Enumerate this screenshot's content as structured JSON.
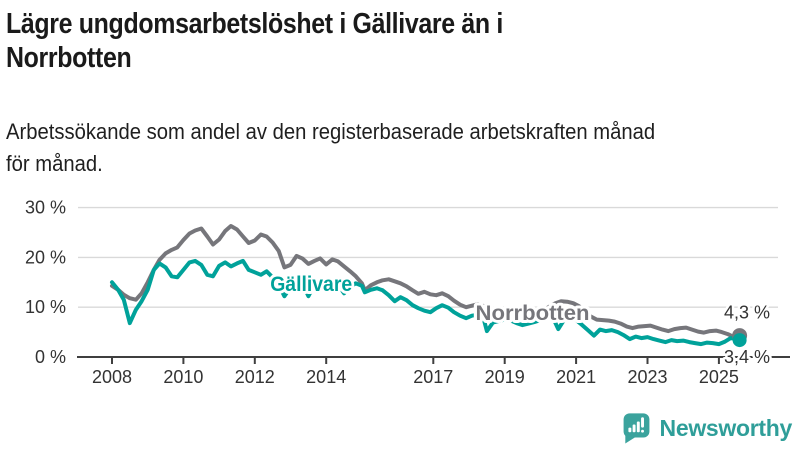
{
  "header": {
    "title_lines": [
      "Lägre ungdomsarbetslöshet i Gällivare än i",
      "Norrbotten"
    ],
    "subtitle_lines": [
      "Arbetssökande som andel av den registerbaserade arbetskraften månad",
      "för månad."
    ]
  },
  "footer": {
    "brand": "Newsworthy",
    "logo_icon": "bar-chart-exclamation-bubble-icon"
  },
  "colors": {
    "gallivare": "#00a29a",
    "norrbotten": "#76767b",
    "grid": "#d9d9d9",
    "axis": "#3f3f3f",
    "tick_text": "#333333",
    "brand_teal": "#2f9e99"
  },
  "chart_data": {
    "type": "line",
    "title": "Lägre ungdomsarbetslöshet i Gällivare än i Norrbotten",
    "subtitle": "Arbetssökande som andel av den registerbaserade arbetskraften månad för månad.",
    "xlabel": "",
    "ylabel": "",
    "grid": "horizontal",
    "legend_position": "inline-labels",
    "xlim": [
      2007.6,
      2026.0
    ],
    "ylim": [
      0,
      30
    ],
    "x_ticks": [
      2008,
      2010,
      2012,
      2014,
      2017,
      2019,
      2021,
      2023,
      2025
    ],
    "y_ticks": [
      0,
      10,
      20,
      30
    ],
    "y_tick_labels": [
      "0 %",
      "10 %",
      "20 %",
      "30 %"
    ],
    "annotations": [
      {
        "label": "Gällivare",
        "x": 2013.58,
        "y": 14.7,
        "color": "#00a29a",
        "width": 82
      },
      {
        "label": "Norrbotten",
        "x": 2019.78,
        "y": 8.8,
        "color": "#76767b",
        "width": 114
      }
    ],
    "series": [
      {
        "name": "Norrbotten",
        "color": "#76767b",
        "end_label": "4,3 %",
        "end_value": 4.3,
        "points": [
          [
            2008.0,
            14.3
          ],
          [
            2008.17,
            13.5
          ],
          [
            2008.33,
            12.5
          ],
          [
            2008.5,
            11.8
          ],
          [
            2008.67,
            11.5
          ],
          [
            2008.83,
            12.8
          ],
          [
            2009.0,
            15.0
          ],
          [
            2009.17,
            17.5
          ],
          [
            2009.33,
            19.5
          ],
          [
            2009.5,
            20.8
          ],
          [
            2009.67,
            21.5
          ],
          [
            2009.83,
            22.0
          ],
          [
            2010.0,
            23.5
          ],
          [
            2010.17,
            24.8
          ],
          [
            2010.33,
            25.4
          ],
          [
            2010.5,
            25.8
          ],
          [
            2010.67,
            24.2
          ],
          [
            2010.83,
            22.6
          ],
          [
            2011.0,
            23.6
          ],
          [
            2011.17,
            25.3
          ],
          [
            2011.33,
            26.3
          ],
          [
            2011.5,
            25.6
          ],
          [
            2011.67,
            24.2
          ],
          [
            2011.83,
            22.9
          ],
          [
            2012.0,
            23.4
          ],
          [
            2012.17,
            24.6
          ],
          [
            2012.33,
            24.2
          ],
          [
            2012.5,
            23.0
          ],
          [
            2012.67,
            21.3
          ],
          [
            2012.83,
            18.0
          ],
          [
            2013.0,
            18.5
          ],
          [
            2013.17,
            20.3
          ],
          [
            2013.33,
            19.8
          ],
          [
            2013.5,
            18.7
          ],
          [
            2013.67,
            19.3
          ],
          [
            2013.83,
            19.8
          ],
          [
            2014.0,
            18.6
          ],
          [
            2014.17,
            19.6
          ],
          [
            2014.33,
            19.2
          ],
          [
            2014.5,
            18.2
          ],
          [
            2014.67,
            17.2
          ],
          [
            2014.83,
            16.2
          ],
          [
            2015.0,
            14.8
          ],
          [
            2015.08,
            13.4
          ],
          [
            2015.25,
            14.4
          ],
          [
            2015.42,
            15.0
          ],
          [
            2015.58,
            15.4
          ],
          [
            2015.75,
            15.6
          ],
          [
            2015.92,
            15.2
          ],
          [
            2016.08,
            14.8
          ],
          [
            2016.25,
            14.2
          ],
          [
            2016.42,
            13.4
          ],
          [
            2016.58,
            12.7
          ],
          [
            2016.75,
            13.1
          ],
          [
            2016.92,
            12.6
          ],
          [
            2017.08,
            12.4
          ],
          [
            2017.25,
            12.8
          ],
          [
            2017.42,
            12.2
          ],
          [
            2017.58,
            11.3
          ],
          [
            2017.75,
            10.5
          ],
          [
            2017.92,
            10.0
          ],
          [
            2018.08,
            10.3
          ],
          [
            2018.25,
            10.6
          ],
          [
            2018.42,
            10.2
          ],
          [
            2018.58,
            9.7
          ],
          [
            2018.75,
            9.4
          ],
          [
            2018.92,
            9.2
          ],
          [
            2019.08,
            9.0
          ],
          [
            2019.25,
            9.1
          ],
          [
            2019.42,
            8.8
          ],
          [
            2019.58,
            8.5
          ],
          [
            2019.75,
            8.6
          ],
          [
            2019.92,
            8.9
          ],
          [
            2020.08,
            9.4
          ],
          [
            2020.25,
            10.1
          ],
          [
            2020.42,
            10.8
          ],
          [
            2020.58,
            11.2
          ],
          [
            2020.75,
            11.1
          ],
          [
            2020.92,
            10.8
          ],
          [
            2021.08,
            10.2
          ],
          [
            2021.25,
            9.0
          ],
          [
            2021.42,
            8.1
          ],
          [
            2021.58,
            7.5
          ],
          [
            2021.75,
            7.4
          ],
          [
            2021.92,
            7.3
          ],
          [
            2022.08,
            7.1
          ],
          [
            2022.25,
            6.7
          ],
          [
            2022.42,
            6.1
          ],
          [
            2022.58,
            5.8
          ],
          [
            2022.75,
            6.1
          ],
          [
            2022.92,
            6.2
          ],
          [
            2023.08,
            6.3
          ],
          [
            2023.25,
            5.9
          ],
          [
            2023.42,
            5.5
          ],
          [
            2023.58,
            5.2
          ],
          [
            2023.75,
            5.6
          ],
          [
            2023.92,
            5.8
          ],
          [
            2024.08,
            5.9
          ],
          [
            2024.25,
            5.5
          ],
          [
            2024.42,
            5.1
          ],
          [
            2024.58,
            4.9
          ],
          [
            2024.75,
            5.2
          ],
          [
            2024.92,
            5.3
          ],
          [
            2025.08,
            5.0
          ],
          [
            2025.25,
            4.6
          ],
          [
            2025.42,
            4.0
          ],
          [
            2025.58,
            4.3
          ]
        ]
      },
      {
        "name": "Gällivare",
        "color": "#00a29a",
        "end_label": "3,4 %",
        "end_value": 3.4,
        "points": [
          [
            2008.0,
            15.0
          ],
          [
            2008.17,
            13.5
          ],
          [
            2008.33,
            11.5
          ],
          [
            2008.5,
            6.8
          ],
          [
            2008.67,
            9.5
          ],
          [
            2008.83,
            11.2
          ],
          [
            2009.0,
            13.5
          ],
          [
            2009.17,
            17.5
          ],
          [
            2009.33,
            18.8
          ],
          [
            2009.5,
            18.0
          ],
          [
            2009.67,
            16.2
          ],
          [
            2009.83,
            16.0
          ],
          [
            2010.0,
            17.5
          ],
          [
            2010.17,
            19.0
          ],
          [
            2010.33,
            19.3
          ],
          [
            2010.5,
            18.5
          ],
          [
            2010.67,
            16.5
          ],
          [
            2010.83,
            16.2
          ],
          [
            2011.0,
            18.3
          ],
          [
            2011.17,
            19.0
          ],
          [
            2011.33,
            18.2
          ],
          [
            2011.5,
            18.8
          ],
          [
            2011.67,
            19.3
          ],
          [
            2011.83,
            17.5
          ],
          [
            2012.0,
            17.0
          ],
          [
            2012.17,
            16.5
          ],
          [
            2012.33,
            17.2
          ],
          [
            2012.5,
            16.0
          ],
          [
            2012.67,
            14.5
          ],
          [
            2012.83,
            12.2
          ],
          [
            2013.0,
            14.0
          ],
          [
            2013.17,
            15.5
          ],
          [
            2013.33,
            14.8
          ],
          [
            2013.5,
            12.2
          ],
          [
            2013.67,
            14.5
          ],
          [
            2013.83,
            15.2
          ],
          [
            2014.0,
            15.0
          ],
          [
            2014.17,
            15.3
          ],
          [
            2014.33,
            14.5
          ],
          [
            2014.5,
            12.8
          ],
          [
            2014.67,
            14.2
          ],
          [
            2014.83,
            14.8
          ],
          [
            2015.0,
            14.3
          ],
          [
            2015.08,
            13.0
          ],
          [
            2015.25,
            13.5
          ],
          [
            2015.42,
            13.8
          ],
          [
            2015.58,
            13.4
          ],
          [
            2015.75,
            12.4
          ],
          [
            2015.92,
            11.2
          ],
          [
            2016.08,
            12.0
          ],
          [
            2016.25,
            11.4
          ],
          [
            2016.42,
            10.4
          ],
          [
            2016.58,
            9.8
          ],
          [
            2016.75,
            9.3
          ],
          [
            2016.92,
            9.0
          ],
          [
            2017.08,
            9.8
          ],
          [
            2017.25,
            10.4
          ],
          [
            2017.42,
            9.9
          ],
          [
            2017.58,
            9.0
          ],
          [
            2017.75,
            8.3
          ],
          [
            2017.92,
            7.8
          ],
          [
            2018.08,
            8.3
          ],
          [
            2018.25,
            8.5
          ],
          [
            2018.42,
            7.4
          ],
          [
            2018.5,
            5.2
          ],
          [
            2018.67,
            6.9
          ],
          [
            2018.83,
            7.2
          ],
          [
            2019.0,
            7.5
          ],
          [
            2019.17,
            7.3
          ],
          [
            2019.33,
            6.8
          ],
          [
            2019.5,
            6.4
          ],
          [
            2019.67,
            6.7
          ],
          [
            2019.83,
            7.0
          ],
          [
            2020.0,
            7.4
          ],
          [
            2020.17,
            7.9
          ],
          [
            2020.33,
            8.2
          ],
          [
            2020.5,
            5.6
          ],
          [
            2020.67,
            7.5
          ],
          [
            2020.83,
            7.8
          ],
          [
            2021.0,
            7.4
          ],
          [
            2021.17,
            6.4
          ],
          [
            2021.33,
            5.4
          ],
          [
            2021.5,
            4.3
          ],
          [
            2021.67,
            5.5
          ],
          [
            2021.83,
            5.2
          ],
          [
            2022.0,
            5.4
          ],
          [
            2022.17,
            5.0
          ],
          [
            2022.33,
            4.4
          ],
          [
            2022.5,
            3.6
          ],
          [
            2022.67,
            4.1
          ],
          [
            2022.83,
            3.8
          ],
          [
            2023.0,
            4.0
          ],
          [
            2023.17,
            3.6
          ],
          [
            2023.33,
            3.3
          ],
          [
            2023.5,
            3.0
          ],
          [
            2023.67,
            3.4
          ],
          [
            2023.83,
            3.2
          ],
          [
            2024.0,
            3.3
          ],
          [
            2024.17,
            3.0
          ],
          [
            2024.33,
            2.8
          ],
          [
            2024.5,
            2.6
          ],
          [
            2024.67,
            2.9
          ],
          [
            2024.83,
            2.8
          ],
          [
            2025.0,
            2.6
          ],
          [
            2025.17,
            3.1
          ],
          [
            2025.33,
            3.8
          ],
          [
            2025.5,
            3.6
          ],
          [
            2025.58,
            3.4
          ]
        ]
      }
    ]
  }
}
